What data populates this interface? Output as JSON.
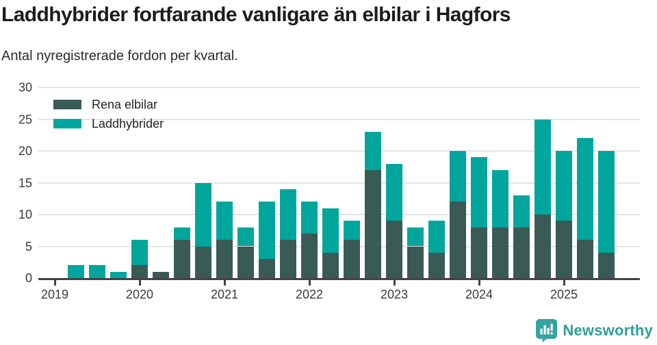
{
  "header": {
    "title": "Laddhybrider fortfarande vanligare än elbilar i Hagfors",
    "subtitle": "Antal nyregistrerade fordon per kvartal."
  },
  "footer": {
    "brand": "Newsworthy",
    "logo_icon": "bar-chart-speech-bubble-icon",
    "brand_color": "#2d9f9c"
  },
  "chart_data": {
    "type": "bar",
    "stacked": true,
    "title": "Laddhybrider fortfarande vanligare än elbilar i Hagfors",
    "subtitle": "Antal nyregistrerade fordon per kvartal.",
    "categories": [
      "2019 Q1",
      "2019 Q2",
      "2019 Q3",
      "2019 Q4",
      "2020 Q1",
      "2020 Q2",
      "2020 Q3",
      "2020 Q4",
      "2021 Q1",
      "2021 Q2",
      "2021 Q3",
      "2021 Q4",
      "2022 Q1",
      "2022 Q2",
      "2022 Q3",
      "2022 Q4",
      "2023 Q1",
      "2023 Q2",
      "2023 Q3",
      "2023 Q4",
      "2024 Q1",
      "2024 Q2",
      "2024 Q3",
      "2024 Q4",
      "2025 Q1",
      "2025 Q2",
      "2025 Q3"
    ],
    "series": [
      {
        "name": "Rena elbilar",
        "color": "#3a5a55",
        "values": [
          0,
          0,
          0,
          0,
          2,
          1,
          6,
          5,
          6,
          5,
          3,
          6,
          7,
          4,
          6,
          17,
          9,
          5,
          4,
          12,
          8,
          8,
          8,
          10,
          9,
          6,
          4
        ]
      },
      {
        "name": "Laddhybrider",
        "color": "#00a59c",
        "values": [
          0,
          2,
          2,
          1,
          4,
          0,
          2,
          10,
          6,
          3,
          9,
          8,
          5,
          7,
          3,
          6,
          9,
          3,
          5,
          8,
          11,
          9,
          5,
          15,
          11,
          16,
          16
        ]
      }
    ],
    "totals": [
      0,
      2,
      2,
      1,
      6,
      1,
      8,
      15,
      12,
      8,
      12,
      14,
      12,
      11,
      9,
      23,
      18,
      8,
      9,
      20,
      19,
      17,
      13,
      25,
      20,
      22,
      20
    ],
    "yticks": [
      0,
      5,
      10,
      15,
      20,
      25,
      30
    ],
    "ylim": [
      0,
      30
    ],
    "x_year_ticks": [
      {
        "label": "2019",
        "index": 0
      },
      {
        "label": "2020",
        "index": 4
      },
      {
        "label": "2021",
        "index": 8
      },
      {
        "label": "2022",
        "index": 12
      },
      {
        "label": "2023",
        "index": 16
      },
      {
        "label": "2024",
        "index": 20
      },
      {
        "label": "2025",
        "index": 24
      }
    ],
    "grid": "horizontal",
    "legend_position": "top-left"
  }
}
